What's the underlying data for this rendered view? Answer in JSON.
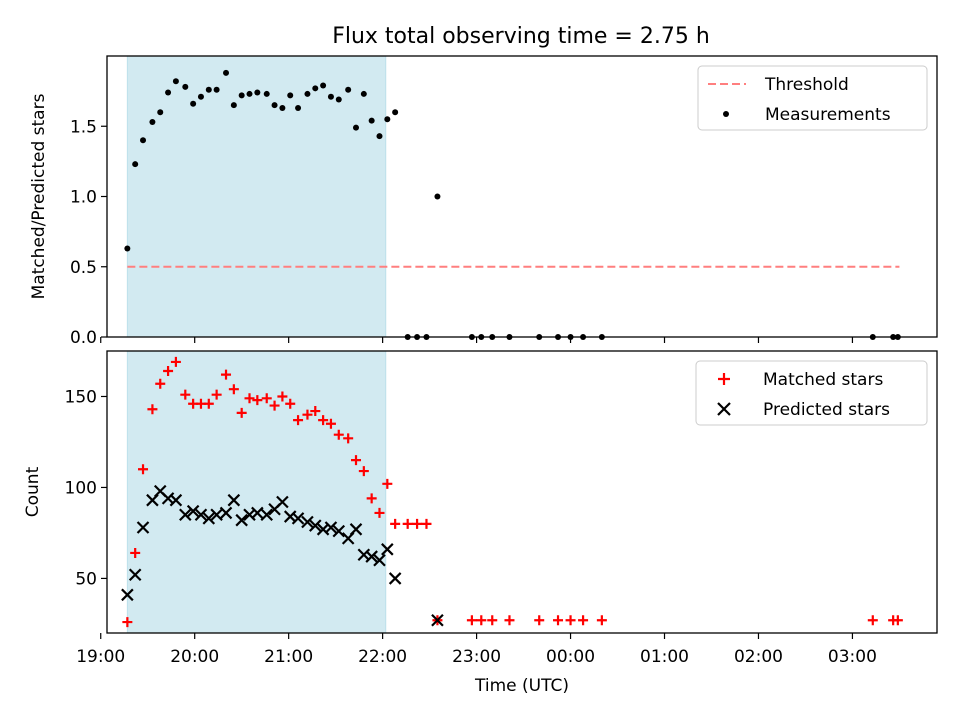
{
  "chart_data": [
    {
      "type": "scatter",
      "title": "Flux total observing time = 2.75 h",
      "xlabel": "",
      "ylabel": "Matched/Predicted stars",
      "x_unit": "time (UTC)",
      "xlim": [
        "19:04",
        "03:54"
      ],
      "ylim": [
        0,
        2.0
      ],
      "y_ticks": [
        "0.0",
        "0.5",
        "1.0",
        "1.5"
      ],
      "x_tick_labels_shown": false,
      "grid": false,
      "legend_position": "top-right",
      "shaded_span": {
        "start": "19:17",
        "end": "22:02",
        "color": "#add8e6"
      },
      "threshold": {
        "name": "Threshold",
        "value": 0.5,
        "x_start": "19:17",
        "x_end": "03:30",
        "color": "#ff7f7f",
        "style": "dashed"
      },
      "series": [
        {
          "name": "Measurements",
          "marker": "dot",
          "color": "#000000",
          "points": [
            [
              "19:17",
              0.63
            ],
            [
              "19:22",
              1.23
            ],
            [
              "19:27",
              1.4
            ],
            [
              "19:33",
              1.53
            ],
            [
              "19:38",
              1.6
            ],
            [
              "19:43",
              1.74
            ],
            [
              "19:48",
              1.82
            ],
            [
              "19:54",
              1.78
            ],
            [
              "19:59",
              1.66
            ],
            [
              "20:04",
              1.71
            ],
            [
              "20:09",
              1.76
            ],
            [
              "20:14",
              1.76
            ],
            [
              "20:20",
              1.88
            ],
            [
              "20:25",
              1.65
            ],
            [
              "20:30",
              1.72
            ],
            [
              "20:35",
              1.73
            ],
            [
              "20:40",
              1.74
            ],
            [
              "20:46",
              1.73
            ],
            [
              "20:51",
              1.65
            ],
            [
              "20:56",
              1.63
            ],
            [
              "21:01",
              1.72
            ],
            [
              "21:06",
              1.63
            ],
            [
              "21:12",
              1.73
            ],
            [
              "21:17",
              1.77
            ],
            [
              "21:22",
              1.79
            ],
            [
              "21:27",
              1.71
            ],
            [
              "21:32",
              1.69
            ],
            [
              "21:38",
              1.76
            ],
            [
              "21:43",
              1.49
            ],
            [
              "21:48",
              1.73
            ],
            [
              "21:53",
              1.54
            ],
            [
              "21:58",
              1.43
            ],
            [
              "22:03",
              1.55
            ],
            [
              "22:08",
              1.6
            ],
            [
              "22:16",
              0.0
            ],
            [
              "22:22",
              0.0
            ],
            [
              "22:28",
              0.0
            ],
            [
              "22:35",
              1.0
            ],
            [
              "22:57",
              0.0
            ],
            [
              "23:03",
              0.0
            ],
            [
              "23:10",
              0.0
            ],
            [
              "23:21",
              0.0
            ],
            [
              "23:40",
              0.0
            ],
            [
              "23:52",
              0.0
            ],
            [
              "24:00",
              0.0
            ],
            [
              "24:08",
              0.0
            ],
            [
              "24:20",
              0.0
            ],
            [
              "27:13",
              0.0
            ],
            [
              "27:26",
              0.0
            ],
            [
              "27:29",
              0.0
            ]
          ]
        }
      ]
    },
    {
      "type": "scatter",
      "title": "",
      "xlabel": "Time (UTC)",
      "ylabel": "Count",
      "xlim": [
        "19:04",
        "03:54"
      ],
      "ylim": [
        20,
        175
      ],
      "y_ticks": [
        "50",
        "100",
        "150"
      ],
      "x_ticks": [
        "19:00",
        "20:00",
        "21:00",
        "22:00",
        "23:00",
        "00:00",
        "01:00",
        "02:00",
        "03:00"
      ],
      "grid": false,
      "legend_position": "top-right",
      "shaded_span": {
        "start": "19:17",
        "end": "22:02",
        "color": "#add8e6"
      },
      "series": [
        {
          "name": "Matched stars",
          "marker": "plus",
          "color": "#ff0000",
          "points": [
            [
              "19:17",
              26
            ],
            [
              "19:22",
              64
            ],
            [
              "19:27",
              110
            ],
            [
              "19:33",
              143
            ],
            [
              "19:38",
              157
            ],
            [
              "19:43",
              164
            ],
            [
              "19:48",
              169
            ],
            [
              "19:54",
              151
            ],
            [
              "19:59",
              146
            ],
            [
              "20:04",
              146
            ],
            [
              "20:09",
              146
            ],
            [
              "20:14",
              151
            ],
            [
              "20:20",
              162
            ],
            [
              "20:25",
              154
            ],
            [
              "20:30",
              141
            ],
            [
              "20:35",
              149
            ],
            [
              "20:40",
              148
            ],
            [
              "20:46",
              149
            ],
            [
              "20:51",
              145
            ],
            [
              "20:56",
              150
            ],
            [
              "21:01",
              146
            ],
            [
              "21:06",
              137
            ],
            [
              "21:12",
              140
            ],
            [
              "21:17",
              142
            ],
            [
              "21:22",
              137
            ],
            [
              "21:27",
              135
            ],
            [
              "21:32",
              129
            ],
            [
              "21:38",
              127
            ],
            [
              "21:43",
              115
            ],
            [
              "21:48",
              109
            ],
            [
              "21:53",
              94
            ],
            [
              "21:58",
              86
            ],
            [
              "22:03",
              102
            ],
            [
              "22:08",
              80
            ],
            [
              "22:16",
              80
            ],
            [
              "22:22",
              80
            ],
            [
              "22:28",
              80
            ],
            [
              "22:35",
              27
            ],
            [
              "22:57",
              27
            ],
            [
              "23:03",
              27
            ],
            [
              "23:10",
              27
            ],
            [
              "23:21",
              27
            ],
            [
              "23:40",
              27
            ],
            [
              "23:52",
              27
            ],
            [
              "24:00",
              27
            ],
            [
              "24:08",
              27
            ],
            [
              "24:20",
              27
            ],
            [
              "27:13",
              27
            ],
            [
              "27:26",
              27
            ],
            [
              "27:29",
              27
            ]
          ]
        },
        {
          "name": "Predicted stars",
          "marker": "x",
          "color": "#000000",
          "points": [
            [
              "19:17",
              41
            ],
            [
              "19:22",
              52
            ],
            [
              "19:27",
              78
            ],
            [
              "19:33",
              93
            ],
            [
              "19:38",
              98
            ],
            [
              "19:43",
              94
            ],
            [
              "19:48",
              93
            ],
            [
              "19:54",
              85
            ],
            [
              "19:59",
              87
            ],
            [
              "20:04",
              85
            ],
            [
              "20:09",
              83
            ],
            [
              "20:14",
              85
            ],
            [
              "20:20",
              86
            ],
            [
              "20:25",
              93
            ],
            [
              "20:30",
              82
            ],
            [
              "20:35",
              85
            ],
            [
              "20:40",
              86
            ],
            [
              "20:46",
              85
            ],
            [
              "20:51",
              88
            ],
            [
              "20:56",
              92
            ],
            [
              "21:01",
              84
            ],
            [
              "21:06",
              83
            ],
            [
              "21:12",
              81
            ],
            [
              "21:17",
              79
            ],
            [
              "21:22",
              77
            ],
            [
              "21:27",
              78
            ],
            [
              "21:32",
              76
            ],
            [
              "21:38",
              72
            ],
            [
              "21:43",
              77
            ],
            [
              "21:48",
              63
            ],
            [
              "21:53",
              62
            ],
            [
              "21:58",
              60
            ],
            [
              "22:03",
              66
            ],
            [
              "22:08",
              50
            ],
            [
              "22:35",
              27
            ]
          ]
        }
      ]
    }
  ]
}
